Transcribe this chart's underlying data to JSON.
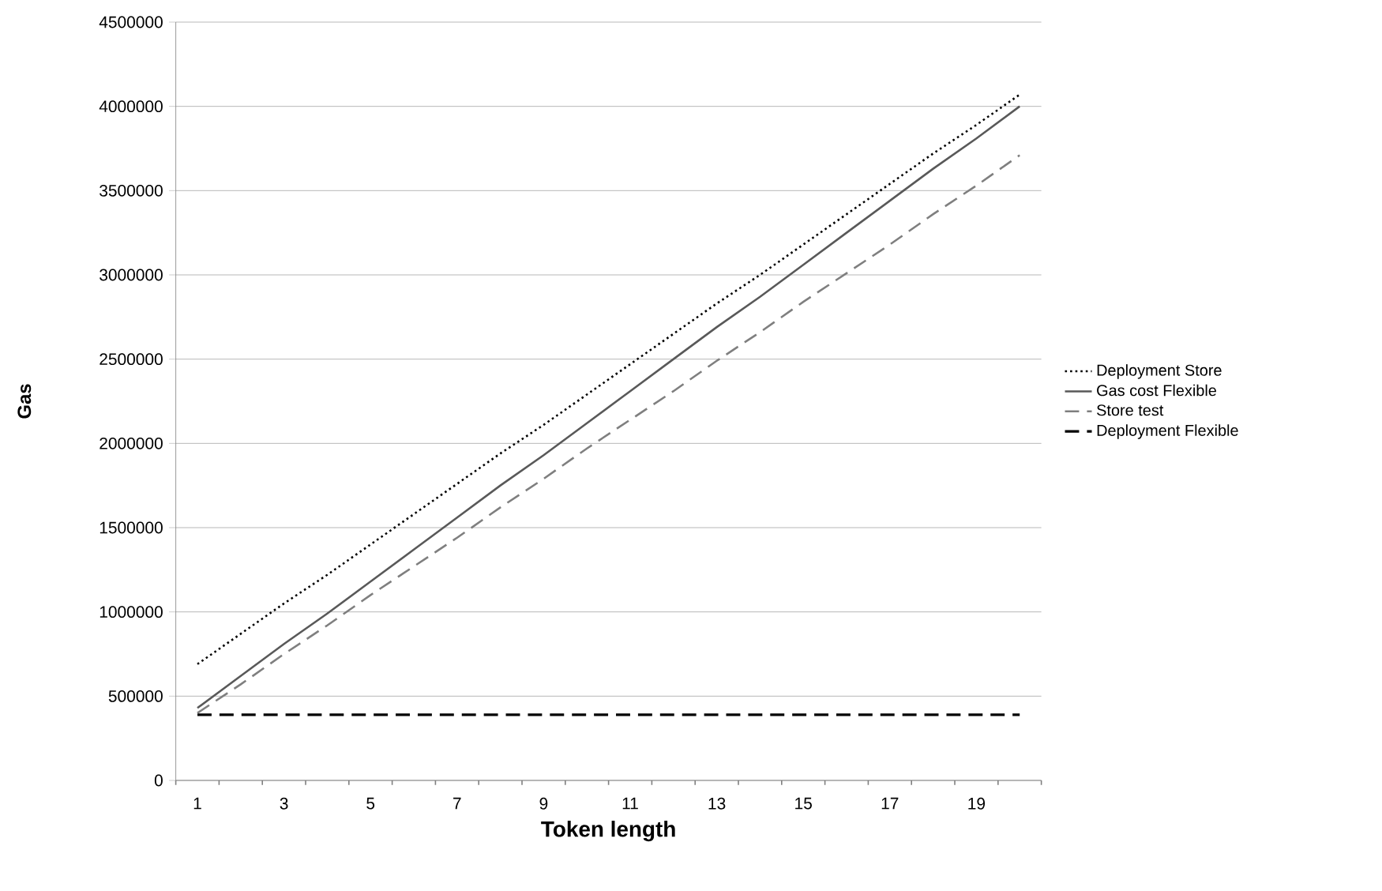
{
  "chart_data": {
    "type": "line",
    "xlabel": "Token length",
    "ylabel": "Gas",
    "categories": [
      "1",
      null,
      "3",
      null,
      "5",
      null,
      "7",
      null,
      "9",
      null,
      "11",
      null,
      "13",
      null,
      "15",
      null,
      "17",
      null,
      "19",
      null
    ],
    "ylim": [
      0,
      4500000
    ],
    "yticks": [
      0,
      500000,
      1000000,
      1500000,
      2000000,
      2500000,
      3000000,
      3500000,
      4000000,
      4500000
    ],
    "grid": "y",
    "legend": "right",
    "marker": "none",
    "series": [
      {
        "name": "Deployment Store",
        "color": "#000000",
        "line_style": "dotted",
        "values": [
          690000,
          870000,
          1050000,
          1220000,
          1400000,
          1580000,
          1760000,
          1940000,
          2110000,
          2290000,
          2470000,
          2650000,
          2830000,
          3000000,
          3180000,
          3360000,
          3540000,
          3720000,
          3890000,
          4070000
        ]
      },
      {
        "name": "Gas cost Flexible",
        "color": "#595959",
        "line_style": "solid",
        "values": [
          430000,
          620000,
          810000,
          990000,
          1180000,
          1370000,
          1560000,
          1750000,
          1930000,
          2120000,
          2310000,
          2500000,
          2690000,
          2870000,
          3060000,
          3250000,
          3440000,
          3630000,
          3810000,
          4000000
        ]
      },
      {
        "name": "Store test",
        "color": "#7f7f7f",
        "line_style": "dashed",
        "values": [
          400000,
          570000,
          750000,
          920000,
          1100000,
          1270000,
          1440000,
          1620000,
          1790000,
          1970000,
          2140000,
          2310000,
          2490000,
          2660000,
          2840000,
          3010000,
          3180000,
          3360000,
          3530000,
          3710000
        ]
      },
      {
        "name": "Deployment Flexible",
        "color": "#000000",
        "line_style": "dashed",
        "values": [
          390000,
          390000,
          390000,
          390000,
          390000,
          390000,
          390000,
          390000,
          390000,
          390000,
          390000,
          390000,
          390000,
          390000,
          390000,
          390000,
          390000,
          390000,
          390000,
          390000
        ]
      }
    ]
  }
}
